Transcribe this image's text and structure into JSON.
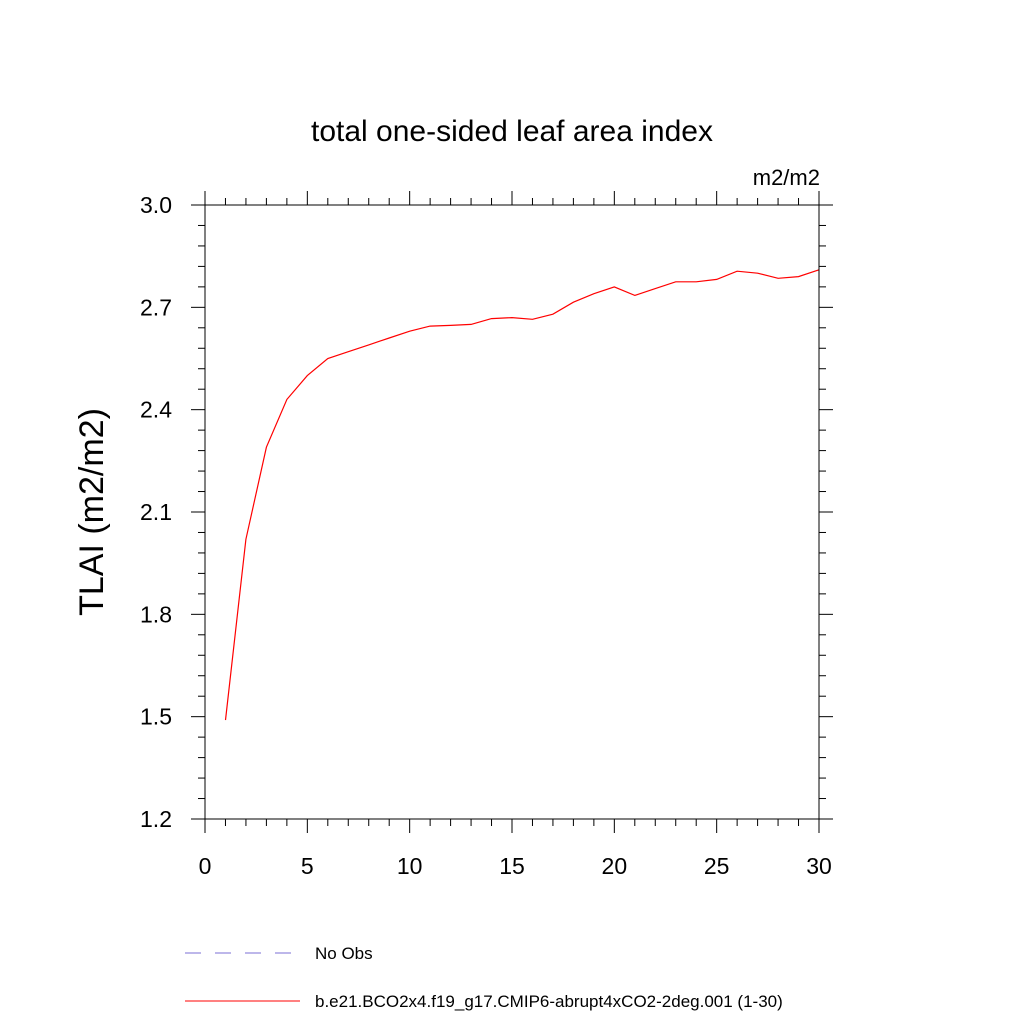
{
  "chart_data": {
    "type": "line",
    "title": "total one-sided leaf area index",
    "units": "m2/m2",
    "ylabel": "TLAI  (m2/m2)",
    "xlabel": "",
    "xlim": [
      0,
      30
    ],
    "ylim": [
      1.2,
      3.0
    ],
    "xticks": [
      "0",
      "5",
      "10",
      "15",
      "20",
      "25",
      "30"
    ],
    "yticks": [
      "1.2",
      "1.5",
      "1.8",
      "2.1",
      "2.4",
      "2.7",
      "3.0"
    ],
    "grid": false,
    "legend_position": "bottom",
    "series": [
      {
        "name": "No Obs",
        "color": "#7b6fd6",
        "style": "dashed",
        "x": [],
        "y": []
      },
      {
        "name": "b.e21.BCO2x4.f19_g17.CMIP6-abrupt4xCO2-2deg.001 (1-30)",
        "color": "#ff0000",
        "style": "solid",
        "x": [
          1,
          2,
          3,
          4,
          5,
          6,
          7,
          8,
          9,
          10,
          11,
          12,
          13,
          14,
          15,
          16,
          17,
          18,
          19,
          20,
          21,
          22,
          23,
          24,
          25,
          26,
          27,
          28,
          29,
          30
        ],
        "y": [
          1.49,
          2.02,
          2.29,
          2.43,
          2.5,
          2.55,
          2.57,
          2.59,
          2.61,
          2.63,
          2.645,
          2.647,
          2.65,
          2.667,
          2.67,
          2.665,
          2.68,
          2.715,
          2.74,
          2.76,
          2.735,
          2.755,
          2.775,
          2.775,
          2.782,
          2.806,
          2.8,
          2.785,
          2.79,
          2.81
        ]
      }
    ]
  }
}
